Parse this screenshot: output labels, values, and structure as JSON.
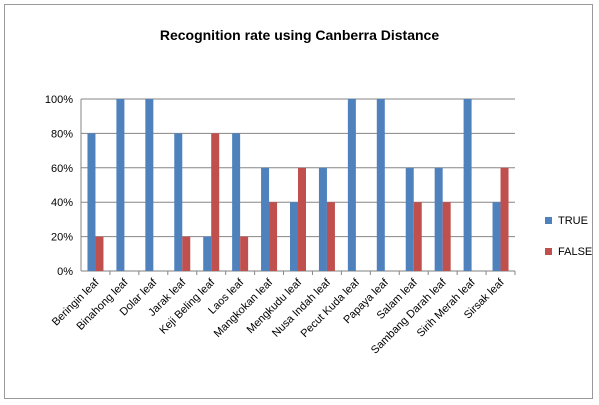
{
  "chart_data": {
    "type": "bar",
    "title": "Recognition rate using Canberra Distance",
    "categories": [
      "Beringin leaf",
      "Binahong leaf",
      "Dolar leaf",
      "Jarak leaf",
      "Keji Beling leaf",
      "Laos leaf",
      "Mangkokan leaf",
      "Mengkudu leaf",
      "Nusa Indah leaf",
      "Pecut Kuda leaf",
      "Papaya leaf",
      "Salam leaf",
      "Sambang Darah leaf",
      "Sirih Merah leaf",
      "Sirsak leaf"
    ],
    "series": [
      {
        "name": "TRUE",
        "color": "#4f81bd",
        "values": [
          80,
          100,
          100,
          80,
          20,
          80,
          60,
          40,
          60,
          100,
          100,
          60,
          60,
          100,
          40
        ]
      },
      {
        "name": "FALSE",
        "color": "#c0504d",
        "values": [
          20,
          0,
          0,
          20,
          80,
          20,
          40,
          60,
          40,
          0,
          0,
          40,
          40,
          0,
          60
        ]
      }
    ],
    "ylim": [
      0,
      100
    ],
    "yticks": [
      "0%",
      "20%",
      "40%",
      "60%",
      "80%",
      "100%"
    ],
    "legend_position": "right",
    "grid": true
  }
}
